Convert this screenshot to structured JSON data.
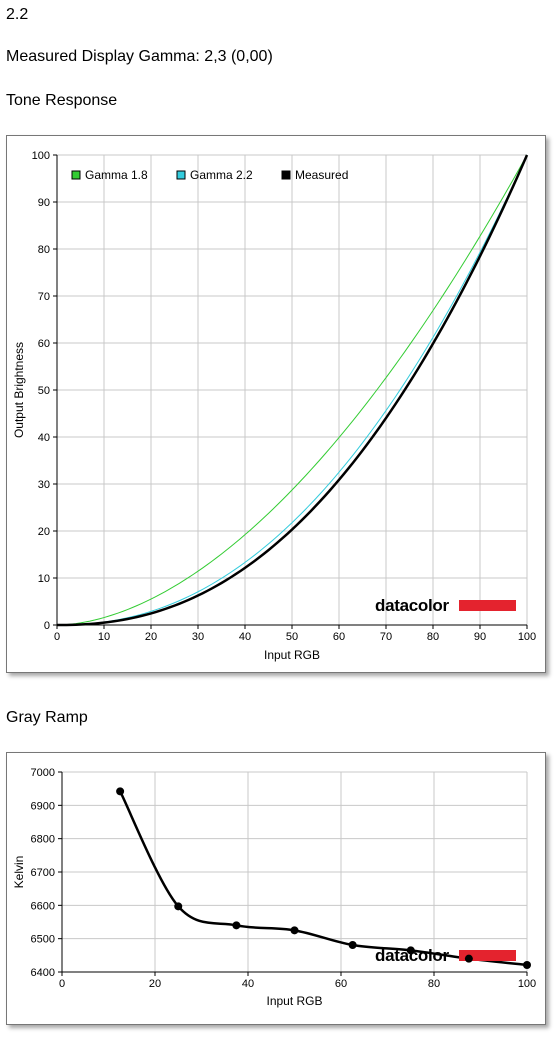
{
  "header": {
    "version": "2.2",
    "measured_gamma": "Measured Display Gamma: 2,3 (0,00)",
    "tone_title": "Tone Response",
    "gray_title": "Gray Ramp"
  },
  "logo": {
    "text": "datacolor",
    "color": "#e4232e"
  },
  "chart_data": [
    {
      "type": "line",
      "title": "Tone Response",
      "xlabel": "Input RGB",
      "ylabel": "Output Brightness",
      "xlim": [
        0,
        100
      ],
      "ylim": [
        0,
        100
      ],
      "xticks": [
        0,
        10,
        20,
        30,
        40,
        50,
        60,
        70,
        80,
        90,
        100
      ],
      "yticks": [
        0,
        10,
        20,
        30,
        40,
        50,
        60,
        70,
        80,
        90,
        100
      ],
      "grid": true,
      "legend_position": "top-left",
      "series": [
        {
          "name": "Gamma 1.8",
          "color": "#33cc33",
          "gamma": 1.8,
          "width": 1
        },
        {
          "name": "Gamma 2.2",
          "color": "#33ccdd",
          "gamma": 2.2,
          "width": 1
        },
        {
          "name": "Measured",
          "color": "#000000",
          "gamma": 2.3,
          "width": 2.5
        }
      ]
    },
    {
      "type": "line",
      "title": "Gray Ramp",
      "xlabel": "Input RGB",
      "ylabel": "Kelvin",
      "xlim": [
        0,
        100
      ],
      "ylim": [
        6400,
        7000
      ],
      "xticks": [
        0,
        20,
        40,
        60,
        80,
        100
      ],
      "yticks": [
        6400,
        6500,
        6600,
        6700,
        6800,
        6900,
        7000
      ],
      "grid": true,
      "series": [
        {
          "name": "",
          "color": "#000000",
          "x": [
            12.5,
            25,
            37.5,
            50,
            62.5,
            75,
            87.5,
            100
          ],
          "y": [
            6942,
            6597,
            6540,
            6525,
            6481,
            6465,
            6440,
            6421
          ]
        }
      ]
    }
  ]
}
